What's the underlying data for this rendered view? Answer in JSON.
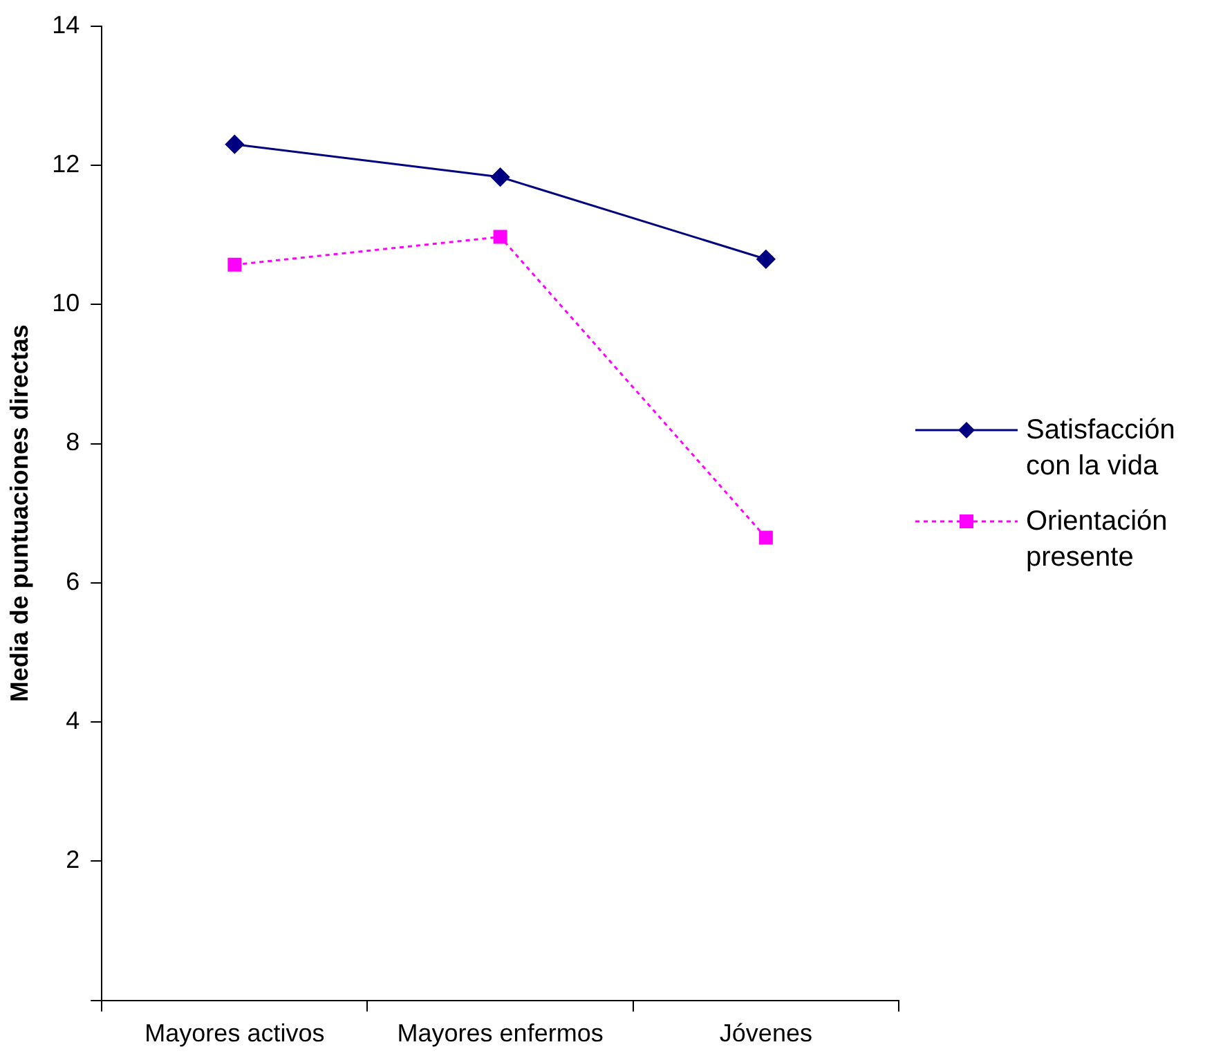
{
  "chart_data": {
    "type": "line",
    "ylabel": "Media de puntuaciones directas",
    "categories": [
      "Mayores activos",
      "Mayores enfermos",
      "Jóvenes"
    ],
    "series": [
      {
        "name": "Satisfacción con la vida",
        "color": "#000080",
        "values": [
          12.3,
          11.83,
          10.65
        ],
        "marker": "diamond",
        "line_style": "solid"
      },
      {
        "name": "Orientación presente",
        "color": "#ff00ff",
        "values": [
          10.57,
          10.97,
          6.65
        ],
        "marker": "square",
        "line_style": "dotted"
      }
    ],
    "ylim": [
      0,
      14
    ],
    "yticks": [
      {
        "value": 0,
        "label": null
      },
      2,
      4,
      6,
      8,
      10,
      12,
      14
    ],
    "grid": false,
    "legend": "right"
  }
}
